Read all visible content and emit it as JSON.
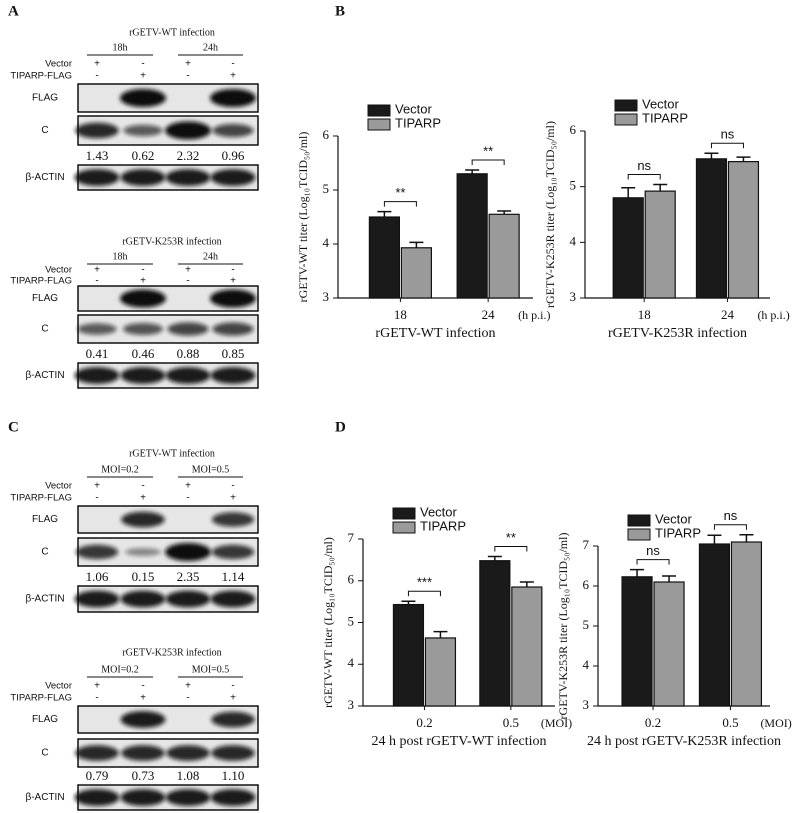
{
  "panel_labels": [
    "A",
    "B",
    "C",
    "D"
  ],
  "blots": [
    {
      "title": "rGETV-WT infection",
      "groups": [
        "18h",
        "24h"
      ],
      "conditions": [
        {
          "label": "Vector",
          "signs": [
            "+",
            "-",
            "+",
            "-"
          ]
        },
        {
          "label": "TIPARP-FLAG",
          "signs": [
            "-",
            "+",
            "-",
            "+"
          ]
        }
      ],
      "bands": [
        "FLAG",
        "C",
        "β-ACTIN"
      ],
      "quantification": [
        "1.43",
        "0.62",
        "2.32",
        "0.96"
      ]
    },
    {
      "title": "rGETV-K253R infection",
      "groups": [
        "18h",
        "24h"
      ],
      "conditions": [
        {
          "label": "Vector",
          "signs": [
            "+",
            "-",
            "+",
            "-"
          ]
        },
        {
          "label": "TIPARP-FLAG",
          "signs": [
            "-",
            "+",
            "-",
            "+"
          ]
        }
      ],
      "bands": [
        "FLAG",
        "C",
        "β-ACTIN"
      ],
      "quantification": [
        "0.41",
        "0.46",
        "0.88",
        "0.85"
      ]
    },
    {
      "title": "rGETV-WT infection",
      "groups": [
        "MOI=0.2",
        "MOI=0.5"
      ],
      "conditions": [
        {
          "label": "Vector",
          "signs": [
            "+",
            "-",
            "+",
            "-"
          ]
        },
        {
          "label": "TIPARP-FLAG",
          "signs": [
            "-",
            "+",
            "-",
            "+"
          ]
        }
      ],
      "bands": [
        "FLAG",
        "C",
        "β-ACTIN"
      ],
      "quantification": [
        "1.06",
        "0.15",
        "2.35",
        "1.14"
      ]
    },
    {
      "title": "rGETV-K253R infection",
      "groups": [
        "MOI=0.2",
        "MOI=0.5"
      ],
      "conditions": [
        {
          "label": "Vector",
          "signs": [
            "+",
            "-",
            "+",
            "-"
          ]
        },
        {
          "label": "TIPARP-FLAG",
          "signs": [
            "-",
            "+",
            "-",
            "+"
          ]
        }
      ],
      "bands": [
        "FLAG",
        "C",
        "β-ACTIN"
      ],
      "quantification": [
        "0.79",
        "0.73",
        "1.08",
        "1.10"
      ]
    }
  ],
  "chart_data": [
    {
      "type": "bar",
      "ylabel": "rGETV-WT titer (Log₁₀TCID₅₀/ml)",
      "xlabel": "rGETV-WT infection",
      "x_unit": "(h p.i.)",
      "categories": [
        "18",
        "24"
      ],
      "series": [
        {
          "name": "Vector",
          "color": "#1a1a1a",
          "values": [
            4.5,
            5.3
          ],
          "errors": [
            0.1,
            0.07
          ]
        },
        {
          "name": "TIPARP",
          "color": "#9a9a9a",
          "values": [
            3.93,
            4.55
          ],
          "errors": [
            0.1,
            0.06
          ]
        }
      ],
      "significance": [
        "**",
        "**"
      ],
      "ylim": [
        3,
        6
      ],
      "yticks": [
        3,
        4,
        5,
        6
      ]
    },
    {
      "type": "bar",
      "ylabel": "rGETV-K253R titer (Log₁₀TCID₅₀/ml)",
      "xlabel": "rGETV-K253R infection",
      "x_unit": "(h p.i.)",
      "categories": [
        "18",
        "24"
      ],
      "series": [
        {
          "name": "Vector",
          "color": "#1a1a1a",
          "values": [
            4.8,
            5.5
          ],
          "errors": [
            0.18,
            0.1
          ]
        },
        {
          "name": "TIPARP",
          "color": "#9a9a9a",
          "values": [
            4.92,
            5.45
          ],
          "errors": [
            0.12,
            0.08
          ]
        }
      ],
      "significance": [
        "ns",
        "ns"
      ],
      "ylim": [
        3,
        6
      ],
      "yticks": [
        3,
        4,
        5,
        6
      ]
    },
    {
      "type": "bar",
      "ylabel": "rGETV-WT titer (Log₁₀TCID₅₀/ml)",
      "xlabel": "24 h post rGETV-WT infection",
      "x_unit": "(MOI)",
      "categories": [
        "0.2",
        "0.5"
      ],
      "series": [
        {
          "name": "Vector",
          "color": "#1a1a1a",
          "values": [
            5.43,
            6.48
          ],
          "errors": [
            0.08,
            0.1
          ]
        },
        {
          "name": "TIPARP",
          "color": "#9a9a9a",
          "values": [
            4.63,
            5.85
          ],
          "errors": [
            0.15,
            0.12
          ]
        }
      ],
      "significance": [
        "***",
        "**"
      ],
      "ylim": [
        3,
        7
      ],
      "yticks": [
        3,
        4,
        5,
        6,
        7
      ]
    },
    {
      "type": "bar",
      "ylabel": "rGETV-K253R titer (Log₁₀TCID₅₀/ml)",
      "xlabel": "24 h post rGETV-K253R infection",
      "x_unit": "(MOI)",
      "categories": [
        "0.2",
        "0.5"
      ],
      "series": [
        {
          "name": "Vector",
          "color": "#1a1a1a",
          "values": [
            6.23,
            7.05
          ],
          "errors": [
            0.18,
            0.22
          ]
        },
        {
          "name": "TIPARP",
          "color": "#9a9a9a",
          "values": [
            6.1,
            7.1
          ],
          "errors": [
            0.15,
            0.18
          ]
        }
      ],
      "significance": [
        "ns",
        "ns"
      ],
      "ylim": [
        3,
        7
      ],
      "yticks": [
        3,
        4,
        5,
        6,
        7
      ]
    }
  ]
}
